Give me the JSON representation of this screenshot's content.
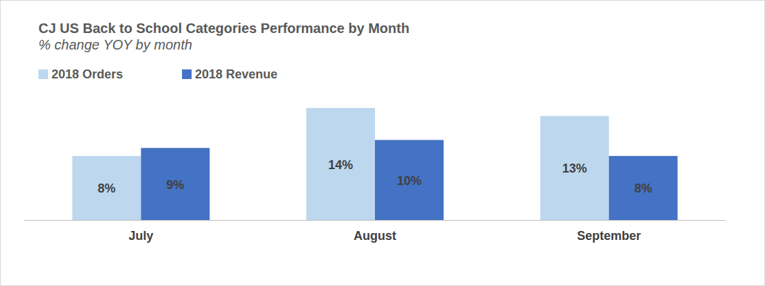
{
  "chart_data": {
    "type": "bar",
    "title": "CJ US Back to School Categories Performance by Month",
    "subtitle": "% change YOY by month",
    "categories": [
      "July",
      "August",
      "September"
    ],
    "series": [
      {
        "name": "2018 Orders",
        "color": "#bdd7ee",
        "values": [
          8,
          14,
          13
        ],
        "value_labels": [
          "8%",
          "14%",
          "13%"
        ]
      },
      {
        "name": "2018 Revenue",
        "color": "#4472c4",
        "values": [
          9,
          10,
          8
        ],
        "value_labels": [
          "9%",
          "10%",
          "8%"
        ]
      }
    ],
    "ylim": [
      0,
      14
    ],
    "grid": false,
    "legend": "top",
    "data_labels": true,
    "tick_labels": "x"
  }
}
